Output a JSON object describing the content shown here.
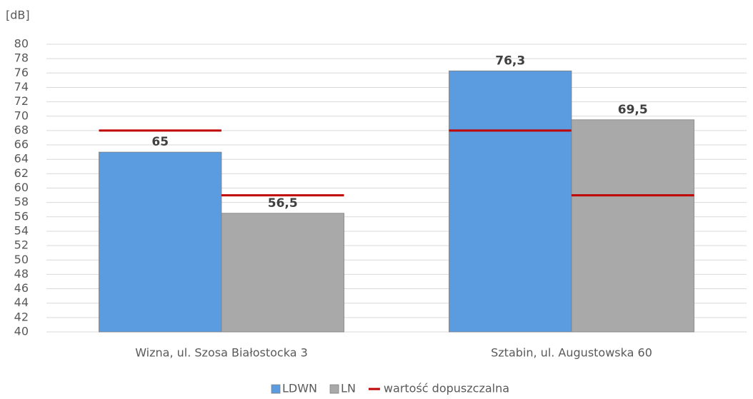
{
  "chart_data": {
    "type": "bar",
    "y_label": "[dB]",
    "categories": [
      "Wizna, ul. Szosa Białostocka 3",
      "Sztabin, ul. Augustowska 60"
    ],
    "series": [
      {
        "name": "LDWN",
        "color": "#5b9be0",
        "values": [
          65,
          76.3
        ],
        "value_labels": [
          "65",
          "76,3"
        ],
        "limits": [
          68,
          68
        ]
      },
      {
        "name": "LN",
        "color": "#a9a9a9",
        "values": [
          56.5,
          69.5
        ],
        "value_labels": [
          "56,5",
          "69,5"
        ],
        "limits": [
          59,
          59
        ]
      }
    ],
    "limit_name": "wartość  dopuszczalna",
    "limit_color": "#c00000",
    "ylim": [
      40,
      80
    ],
    "yticks": [
      40,
      42,
      44,
      46,
      48,
      50,
      52,
      54,
      56,
      58,
      60,
      62,
      64,
      66,
      68,
      70,
      72,
      74,
      76,
      78,
      80
    ],
    "grid": true,
    "legend": "bottom"
  }
}
